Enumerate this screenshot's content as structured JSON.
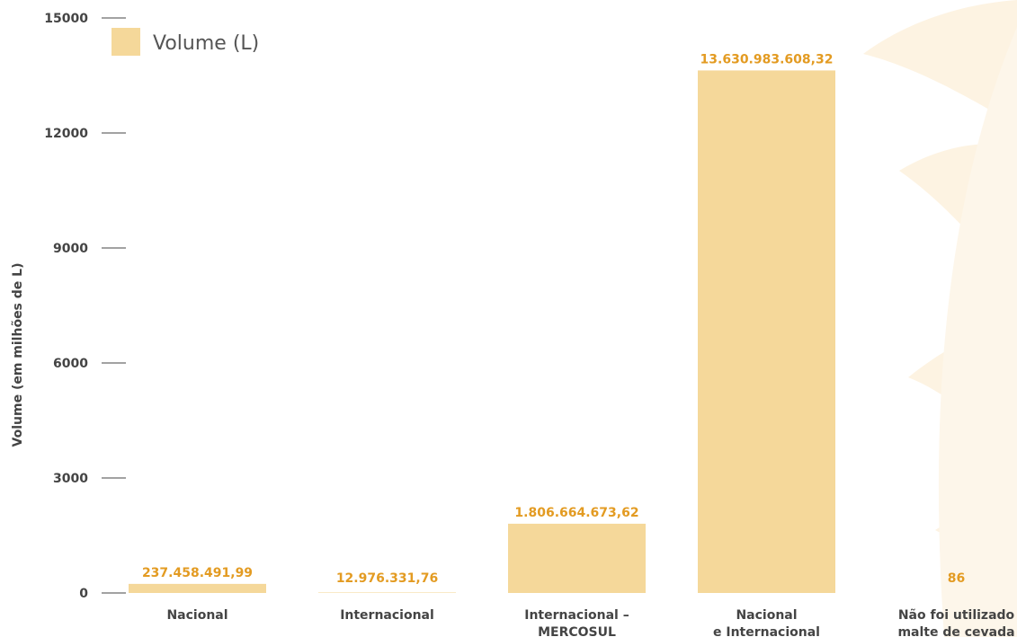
{
  "chart_data": {
    "type": "bar",
    "ylabel": "Volume (em milhões de L)",
    "ylim": [
      0,
      15000
    ],
    "yticks": [
      0,
      3000,
      6000,
      9000,
      12000,
      15000
    ],
    "categories": [
      [
        "Nacional"
      ],
      [
        "Internacional"
      ],
      [
        "Internacional –",
        "MERCOSUL"
      ],
      [
        "Nacional",
        "e Internacional"
      ],
      [
        "Não foi utilizado",
        "malte de cevada"
      ]
    ],
    "series": [
      {
        "name": "Volume (L)",
        "values": [
          237.46,
          12.98,
          1806.66,
          13630.98,
          8.6e-05
        ],
        "value_labels": [
          "237.458.491,99",
          "12.976.331,76",
          "1.806.664.673,62",
          "13.630.983.608,32",
          "86"
        ]
      }
    ],
    "legend": "top-left",
    "grid": false,
    "colors": {
      "bar": "#f5d89a",
      "value_label": "#e39b22",
      "text": "#444444",
      "decoration": "#fdf3e2"
    }
  }
}
